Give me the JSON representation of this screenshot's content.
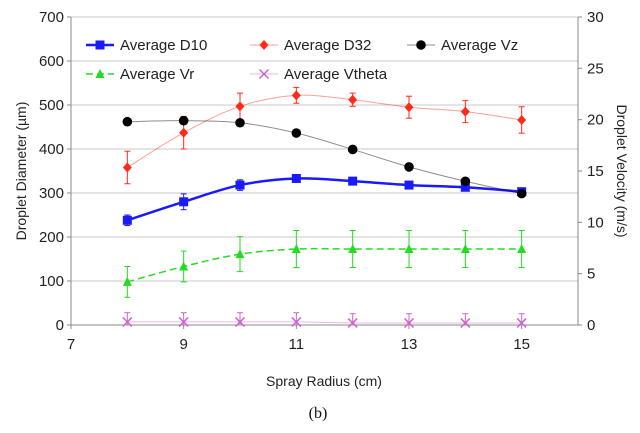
{
  "caption": "(b)",
  "chart_data": {
    "type": "line",
    "xlabel": "Spray Radius (cm)",
    "ylabel": "Droplet Diameter (µm)",
    "y2label": "Droplet Velocity (m/s)",
    "xlim": [
      7,
      16
    ],
    "ylim": [
      0,
      700
    ],
    "y2lim": [
      0,
      30
    ],
    "x_ticks": [
      "7",
      "9",
      "11",
      "13",
      "15"
    ],
    "y_ticks": [
      "0",
      "100",
      "200",
      "300",
      "400",
      "500",
      "600",
      "700"
    ],
    "y2_ticks": [
      "0",
      "5",
      "10",
      "15",
      "20",
      "25",
      "30"
    ],
    "grid": "horizontal",
    "legend_position": "top",
    "x": [
      8,
      9,
      10,
      11,
      12,
      13,
      14,
      15
    ],
    "series": [
      {
        "name": "Average D10",
        "axis": "left",
        "color": "#1a1aff",
        "marker": "square",
        "line": "solid",
        "values": [
          238,
          280,
          318,
          333,
          327,
          318,
          313,
          303
        ],
        "errors": [
          12,
          18,
          12,
          5,
          6,
          6,
          6,
          6
        ]
      },
      {
        "name": "Average D32",
        "axis": "left",
        "color": "#ff2a1a",
        "marker": "diamond",
        "line": "thin",
        "values": [
          358,
          437,
          497,
          522,
          512,
          495,
          485,
          466
        ],
        "errors": [
          37,
          37,
          30,
          18,
          15,
          25,
          25,
          30
        ]
      },
      {
        "name": "Average Vz",
        "axis": "right",
        "color": "#000000",
        "marker": "circle",
        "line": "thin",
        "values": [
          19.8,
          19.9,
          19.7,
          18.7,
          17.1,
          15.4,
          14.0,
          12.8
        ],
        "errors": [
          0,
          0,
          0,
          0,
          0,
          0,
          0,
          0
        ]
      },
      {
        "name": "Average Vr",
        "axis": "right",
        "color": "#22dd22",
        "marker": "triangle",
        "line": "dashed",
        "values": [
          4.2,
          5.7,
          6.9,
          7.4,
          7.4,
          7.4,
          7.4,
          7.4
        ],
        "errors": [
          1.5,
          1.5,
          1.7,
          1.8,
          1.8,
          1.8,
          1.8,
          1.8
        ]
      },
      {
        "name": "Average Vtheta",
        "axis": "right",
        "color": "#cc66cc",
        "marker": "x",
        "line": "thin",
        "values": [
          0.3,
          0.3,
          0.3,
          0.3,
          0.2,
          0.2,
          0.2,
          0.2
        ],
        "errors": [
          0.9,
          0.9,
          0.9,
          0.9,
          0.9,
          0.9,
          0.9,
          0.9
        ]
      }
    ]
  }
}
